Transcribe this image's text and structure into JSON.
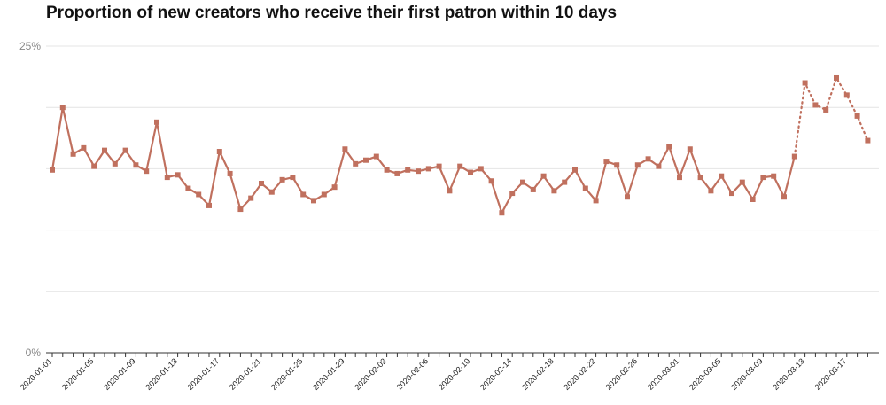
{
  "chart_data": {
    "type": "line",
    "title": "Proportion of new creators who receive their first patron within 10 days",
    "xlabel": "",
    "ylabel": "",
    "ylim": [
      0,
      25
    ],
    "y_ticks": [
      0,
      25
    ],
    "y_tick_labels": [
      "0%",
      "25%"
    ],
    "grid": "horizontal",
    "color": "#c0705e",
    "x_start": "2020-01-01",
    "x_tick_labels": [
      "2020-01-01",
      "2020-01-05",
      "2020-01-09",
      "2020-01-13",
      "2020-01-17",
      "2020-01-21",
      "2020-01-25",
      "2020-01-29",
      "2020-02-02",
      "2020-02-06",
      "2020-02-10",
      "2020-02-14",
      "2020-02-18",
      "2020-02-22",
      "2020-02-26",
      "2020-03-01",
      "2020-03-05",
      "2020-03-09",
      "2020-03-13",
      "2020-03-17"
    ],
    "series": [
      {
        "style": "solid",
        "points": [
          [
            "2020-01-01",
            14.9
          ],
          [
            "2020-01-02",
            20.0
          ],
          [
            "2020-01-03",
            16.2
          ],
          [
            "2020-01-04",
            16.7
          ],
          [
            "2020-01-05",
            15.2
          ],
          [
            "2020-01-06",
            16.5
          ],
          [
            "2020-01-07",
            15.4
          ],
          [
            "2020-01-08",
            16.5
          ],
          [
            "2020-01-09",
            15.3
          ],
          [
            "2020-01-10",
            14.8
          ],
          [
            "2020-01-11",
            18.8
          ],
          [
            "2020-01-12",
            14.3
          ],
          [
            "2020-01-13",
            14.5
          ],
          [
            "2020-01-14",
            13.4
          ],
          [
            "2020-01-15",
            12.9
          ],
          [
            "2020-01-16",
            12.0
          ],
          [
            "2020-01-17",
            16.4
          ],
          [
            "2020-01-18",
            14.6
          ],
          [
            "2020-01-19",
            11.7
          ],
          [
            "2020-01-20",
            12.6
          ],
          [
            "2020-01-21",
            13.8
          ],
          [
            "2020-01-22",
            13.1
          ],
          [
            "2020-01-23",
            14.1
          ],
          [
            "2020-01-24",
            14.3
          ],
          [
            "2020-01-25",
            12.9
          ],
          [
            "2020-01-26",
            12.4
          ],
          [
            "2020-01-27",
            12.9
          ],
          [
            "2020-01-28",
            13.5
          ],
          [
            "2020-01-29",
            16.6
          ],
          [
            "2020-01-30",
            15.4
          ],
          [
            "2020-01-31",
            15.7
          ],
          [
            "2020-02-01",
            16.0
          ],
          [
            "2020-02-02",
            14.9
          ],
          [
            "2020-02-03",
            14.6
          ],
          [
            "2020-02-04",
            14.9
          ],
          [
            "2020-02-05",
            14.8
          ],
          [
            "2020-02-06",
            15.0
          ],
          [
            "2020-02-07",
            15.2
          ],
          [
            "2020-02-08",
            13.2
          ],
          [
            "2020-02-09",
            15.2
          ],
          [
            "2020-02-10",
            14.7
          ],
          [
            "2020-02-11",
            15.0
          ],
          [
            "2020-02-12",
            14.0
          ],
          [
            "2020-02-13",
            11.4
          ],
          [
            "2020-02-14",
            13.0
          ],
          [
            "2020-02-15",
            13.9
          ],
          [
            "2020-02-16",
            13.3
          ],
          [
            "2020-02-17",
            14.4
          ],
          [
            "2020-02-18",
            13.2
          ],
          [
            "2020-02-19",
            13.9
          ],
          [
            "2020-02-20",
            14.9
          ],
          [
            "2020-02-21",
            13.4
          ],
          [
            "2020-02-22",
            12.4
          ],
          [
            "2020-02-23",
            15.6
          ],
          [
            "2020-02-24",
            15.3
          ],
          [
            "2020-02-25",
            12.7
          ],
          [
            "2020-02-26",
            15.3
          ],
          [
            "2020-02-27",
            15.8
          ],
          [
            "2020-02-28",
            15.2
          ],
          [
            "2020-02-29",
            16.8
          ],
          [
            "2020-03-01",
            14.3
          ],
          [
            "2020-03-02",
            16.6
          ],
          [
            "2020-03-03",
            14.3
          ],
          [
            "2020-03-04",
            13.2
          ],
          [
            "2020-03-05",
            14.4
          ],
          [
            "2020-03-06",
            13.0
          ],
          [
            "2020-03-07",
            13.9
          ],
          [
            "2020-03-08",
            12.5
          ],
          [
            "2020-03-09",
            14.3
          ],
          [
            "2020-03-10",
            14.4
          ],
          [
            "2020-03-11",
            12.7
          ],
          [
            "2020-03-12",
            16.0
          ]
        ]
      },
      {
        "style": "dotted",
        "points": [
          [
            "2020-03-12",
            16.0
          ],
          [
            "2020-03-13",
            22.0
          ],
          [
            "2020-03-14",
            20.2
          ],
          [
            "2020-03-15",
            19.8
          ],
          [
            "2020-03-16",
            22.4
          ],
          [
            "2020-03-17",
            21.0
          ],
          [
            "2020-03-18",
            19.3
          ],
          [
            "2020-03-19",
            17.3
          ]
        ]
      }
    ]
  }
}
